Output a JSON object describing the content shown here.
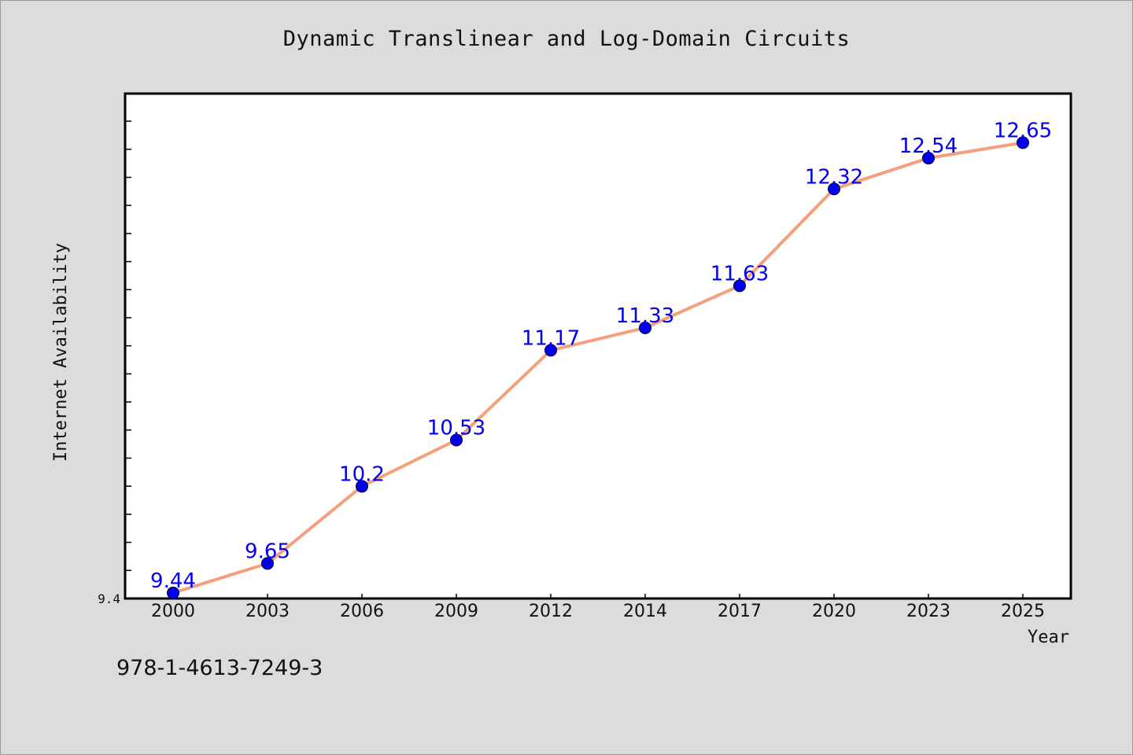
{
  "page": {
    "title": "Dynamic Translinear and Log-Domain Circuits",
    "footer_text": "978-1-4613-7249-3"
  },
  "chart_data": {
    "type": "line",
    "title": "Dynamic Translinear and Log-Domain Circuits",
    "xlabel": "Year",
    "ylabel": "Internet Availability",
    "categories": [
      "2000",
      "2003",
      "2006",
      "2009",
      "2012",
      "2014",
      "2017",
      "2020",
      "2023",
      "2025"
    ],
    "values": [
      9.44,
      9.65,
      10.2,
      10.53,
      11.17,
      11.33,
      11.63,
      12.32,
      12.54,
      12.65
    ],
    "data_labels": [
      "9.44",
      "9.65",
      "10.2",
      "10.53",
      "11.17",
      "11.33",
      "11.63",
      "12.32",
      "12.54",
      "12.65"
    ],
    "ylim": [
      9.4,
      13.0
    ],
    "y_tick_labels": [
      "9.4"
    ],
    "grid": false,
    "legend": "none",
    "colors": {
      "line": "#f4a07c",
      "marker": "#0000ee",
      "data_label": "#0000ee",
      "plot_background": "#ffffff",
      "page_background": "#dcdcdc"
    }
  }
}
